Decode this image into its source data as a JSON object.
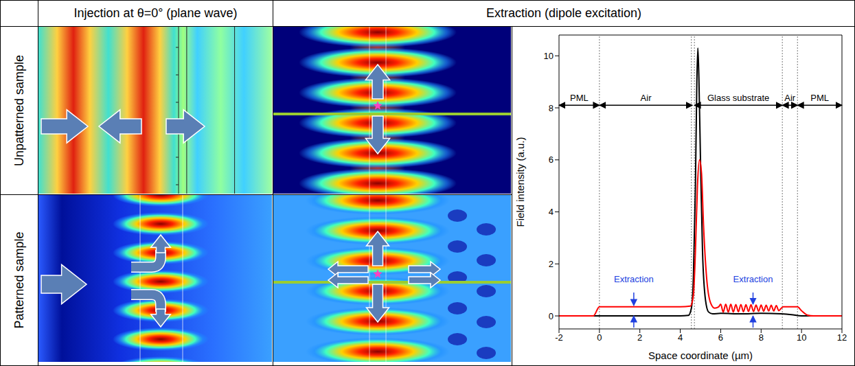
{
  "header": {
    "left": "Injection at θ=0° (plane wave)",
    "right": "Extraction (dipole excitation)"
  },
  "rows": [
    "Unpatterned sample",
    "Patterned sample"
  ],
  "chart_data": {
    "type": "line",
    "xlabel": "Space coordinate (µm)",
    "ylabel": "Field intensity (a.u.)",
    "xlim": [
      -2,
      12
    ],
    "xticks": [
      -2,
      0,
      2,
      4,
      6,
      8,
      10,
      12
    ],
    "ylim": [
      -0.5,
      10.8
    ],
    "yticks": [
      0,
      2,
      4,
      6,
      8,
      10
    ],
    "grid": false,
    "series": [
      {
        "color": "#000000",
        "x": [
          -2,
          0,
          4,
          4.4,
          4.55,
          4.65,
          4.75,
          4.82,
          4.87,
          4.92,
          5.0,
          5.1,
          5.25,
          5.4,
          5.6,
          6,
          7,
          8,
          9,
          9.5,
          10,
          12
        ],
        "values": [
          0,
          0,
          0,
          0.02,
          0.3,
          1.5,
          5,
          9,
          10.3,
          9.2,
          6,
          2.5,
          0.6,
          0.15,
          0.08,
          0.1,
          0.08,
          0.1,
          0.08,
          0.05,
          0,
          0
        ]
      },
      {
        "color": "#ff0000",
        "x": [
          -2,
          -0.3,
          0,
          2,
          4,
          4.5,
          4.65,
          4.75,
          4.85,
          4.95,
          5.05,
          5.15,
          5.3,
          5.5,
          5.7,
          5.9,
          6.0,
          6.125,
          6.25,
          6.375,
          6.5,
          6.625,
          6.75,
          6.875,
          7.0,
          7.125,
          7.25,
          7.375,
          7.5,
          7.625,
          7.75,
          7.875,
          8.0,
          8.125,
          8.25,
          8.375,
          8.5,
          8.625,
          8.75,
          8.875,
          9.0,
          9.1,
          9.8,
          10.0,
          10.3,
          10.6,
          12
        ],
        "values": [
          0,
          0,
          0.35,
          0.35,
          0.35,
          0.38,
          0.8,
          2.5,
          5,
          6.0,
          5.5,
          3.5,
          1.5,
          0.5,
          0.3,
          0.35,
          0.45,
          0.15,
          0.45,
          0.15,
          0.45,
          0.15,
          0.44,
          0.16,
          0.44,
          0.16,
          0.43,
          0.17,
          0.43,
          0.17,
          0.42,
          0.18,
          0.42,
          0.18,
          0.41,
          0.19,
          0.41,
          0.19,
          0.4,
          0.2,
          0.3,
          0.35,
          0.35,
          0.2,
          0.03,
          0,
          0
        ]
      }
    ],
    "boundaries": [
      0,
      4.55,
      4.7,
      9.05,
      9.8
    ],
    "regions": {
      "y": 8.1,
      "items": [
        {
          "label": "PML",
          "from": -2,
          "to": 0
        },
        {
          "label": "Air",
          "from": 0,
          "to": 4.6
        },
        {
          "label": "Glass substrate",
          "from": 4.7,
          "to": 9.05
        },
        {
          "label": "Air",
          "from": 9.05,
          "to": 9.8
        },
        {
          "label": "PML",
          "from": 9.8,
          "to": 12
        }
      ]
    },
    "annotations": [
      {
        "text": "Extraction",
        "x": 1.7,
        "y": 1.3,
        "arrows": [
          [
            0.9,
            0.4
          ],
          [
            -0.45,
            0.0
          ]
        ],
        "color": "#2040e0"
      },
      {
        "text": "Extraction",
        "x": 7.6,
        "y": 1.3,
        "arrows": [
          [
            0.9,
            0.45
          ],
          [
            -0.45,
            0.0
          ]
        ],
        "color": "#2040e0"
      }
    ]
  }
}
